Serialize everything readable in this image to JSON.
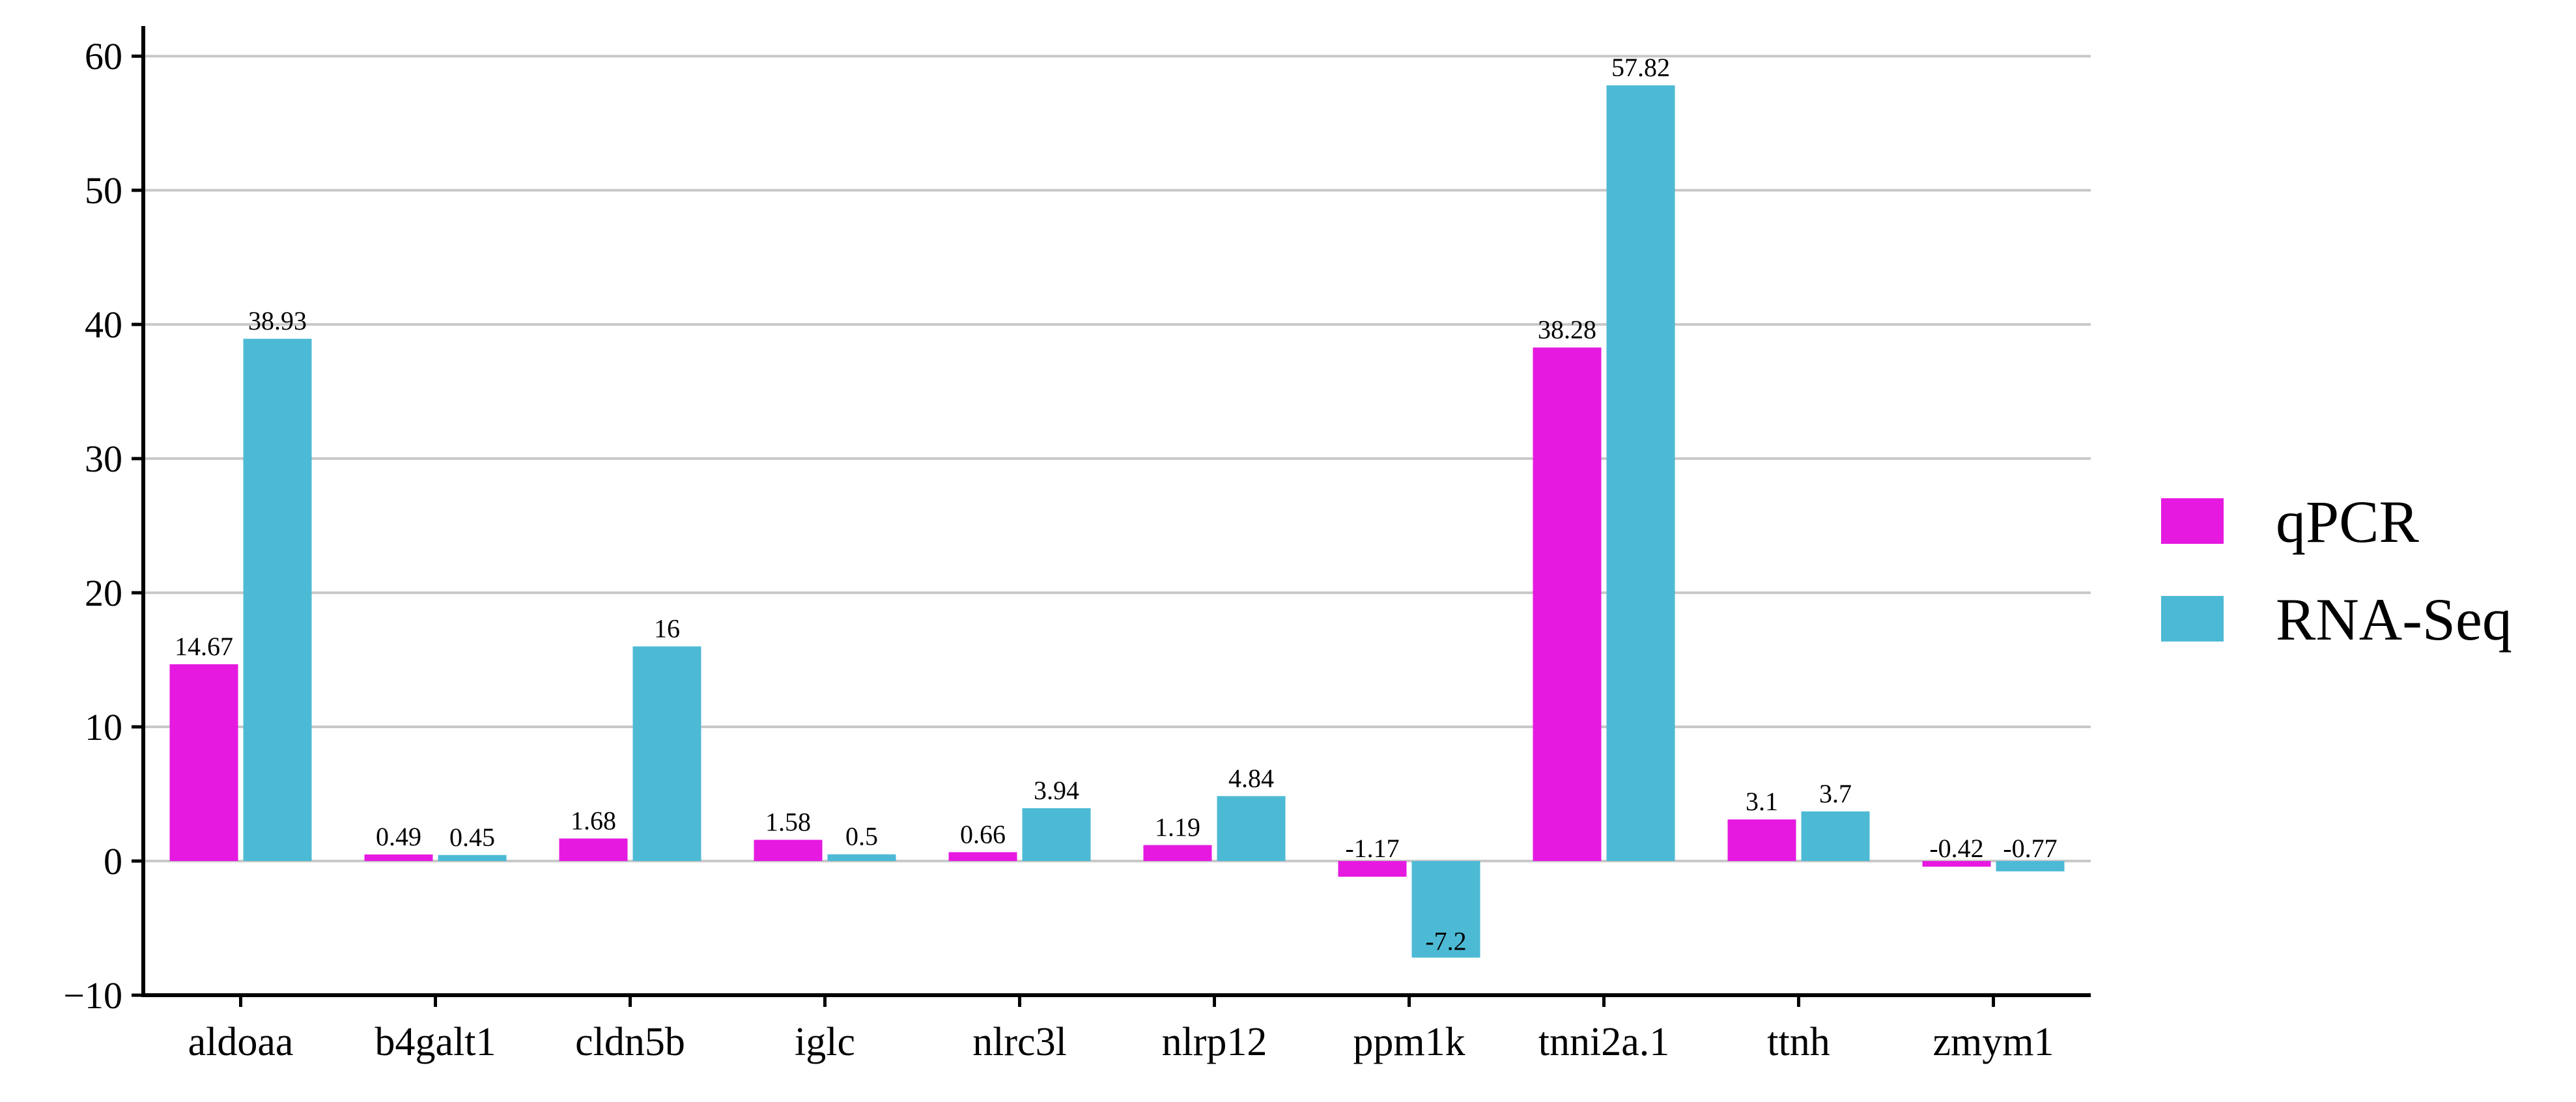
{
  "chart_data": {
    "type": "bar",
    "title": "",
    "xlabel": "",
    "ylabel": "",
    "categories": [
      "aldoaa",
      "b4galt1",
      "cldn5b",
      "iglc",
      "nlrc3l",
      "nlrp12",
      "ppm1k",
      "tnni2a.1",
      "ttnh",
      "zmym1"
    ],
    "series": [
      {
        "name": "qPCR",
        "color": "#e619e0",
        "values": [
          14.67,
          0.49,
          1.68,
          1.58,
          0.66,
          1.19,
          -1.17,
          38.28,
          3.1,
          -0.42
        ],
        "labels": [
          "14.67",
          "0.49",
          "1.68",
          "1.58",
          "0.66",
          "1.19",
          "-1.17",
          "38.28",
          "3.1",
          "-0.42"
        ]
      },
      {
        "name": "RNA-Seq",
        "color": "#4dbad5",
        "values": [
          38.93,
          0.45,
          16,
          0.5,
          3.94,
          4.84,
          -7.2,
          57.82,
          3.7,
          -0.77
        ],
        "labels": [
          "38.93",
          "0.45",
          "16",
          "0.5",
          "3.94",
          "4.84",
          "-7.2",
          "57.82",
          "3.7",
          "-0.77"
        ]
      }
    ],
    "ylim": [
      -10,
      62
    ],
    "yticks": [
      -10,
      0,
      10,
      20,
      30,
      40,
      50,
      60
    ],
    "ytick_labels": [
      "−10",
      "0",
      "10",
      "20",
      "30",
      "40",
      "50",
      "60"
    ],
    "grid": "horizontal",
    "legend_position": "right"
  }
}
